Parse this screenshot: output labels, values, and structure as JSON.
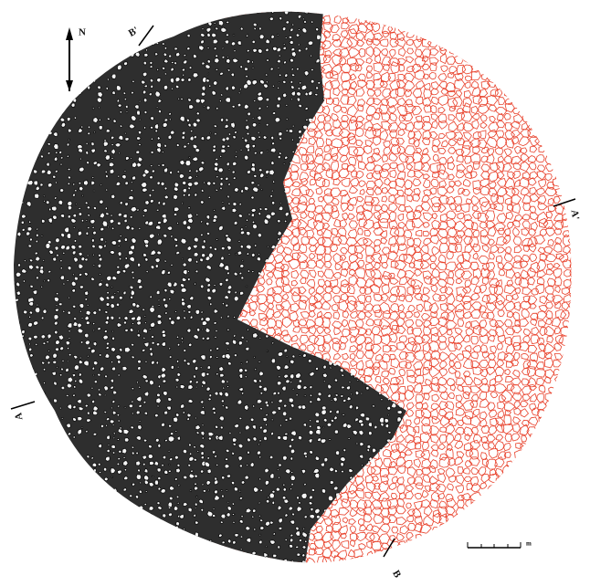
{
  "north": "N",
  "sections": [
    {
      "label": "B'"
    },
    {
      "label": "A'"
    },
    {
      "label": "A"
    },
    {
      "label": "B"
    }
  ],
  "scale_unit": "m"
}
